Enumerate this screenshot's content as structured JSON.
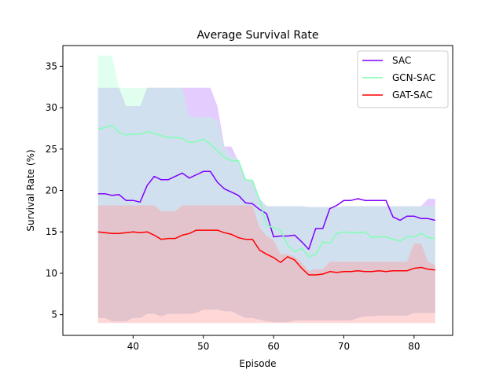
{
  "chart_data": {
    "type": "line",
    "title": "Average Survival Rate",
    "xlabel": "Episode",
    "ylabel": "Survival Rate (%)",
    "xlim": [
      30,
      85.5
    ],
    "ylim": [
      2.5,
      37.5
    ],
    "xticks": [
      40,
      50,
      60,
      70,
      80
    ],
    "yticks": [
      5,
      10,
      15,
      20,
      25,
      30,
      35
    ],
    "grid": false,
    "legend_position": "top-right",
    "x": [
      35,
      36,
      37,
      38,
      39,
      40,
      41,
      42,
      43,
      44,
      45,
      46,
      47,
      48,
      49,
      50,
      51,
      52,
      53,
      54,
      55,
      56,
      57,
      58,
      59,
      60,
      61,
      62,
      63,
      64,
      65,
      66,
      67,
      68,
      69,
      70,
      71,
      72,
      73,
      74,
      75,
      76,
      77,
      78,
      79,
      80,
      81,
      82,
      83
    ],
    "series": [
      {
        "name": "SAC",
        "color": "#7f00ff",
        "fill_color": "#bf7fff",
        "values": [
          19.6,
          19.6,
          19.4,
          19.5,
          18.8,
          18.8,
          18.6,
          20.6,
          21.7,
          21.3,
          21.3,
          21.7,
          22.1,
          21.5,
          21.9,
          22.3,
          22.3,
          21.0,
          20.2,
          19.8,
          19.4,
          18.5,
          18.4,
          17.7,
          17.2,
          14.4,
          14.5,
          14.5,
          14.6,
          13.8,
          12.9,
          15.4,
          15.4,
          17.8,
          18.2,
          18.8,
          18.8,
          19.0,
          18.8,
          18.8,
          18.8,
          18.8,
          16.8,
          16.4,
          16.9,
          16.9,
          16.6,
          16.6,
          16.4
        ],
        "lower": [
          4.6,
          4.6,
          4.2,
          4.2,
          4.2,
          4.6,
          4.6,
          5.1,
          5.1,
          4.8,
          5.1,
          5.1,
          5.1,
          5.1,
          5.2,
          5.6,
          5.6,
          5.6,
          5.4,
          5.4,
          5.0,
          4.6,
          4.6,
          4.4,
          4.2,
          4.1,
          4.1,
          4.1,
          4.3,
          4.3,
          4.3,
          4.3,
          4.3,
          4.3,
          4.3,
          4.3,
          4.3,
          4.6,
          4.8,
          4.8,
          4.9,
          4.9,
          4.9,
          4.9,
          4.9,
          5.2,
          5.2,
          5.2,
          5.2
        ],
        "upper": [
          32.4,
          32.4,
          32.4,
          32.4,
          30.2,
          30.2,
          30.2,
          32.4,
          32.4,
          32.4,
          32.4,
          32.4,
          32.4,
          32.4,
          32.4,
          32.4,
          32.4,
          30.2,
          25.3,
          25.3,
          23.5,
          21.2,
          21.2,
          19.0,
          18.1,
          18.1,
          18.1,
          18.1,
          18.1,
          18.1,
          18.0,
          18.0,
          18.0,
          18.0,
          18.0,
          18.1,
          18.1,
          18.1,
          18.1,
          18.1,
          18.1,
          18.1,
          18.1,
          18.1,
          18.1,
          18.1,
          18.1,
          19.0,
          19.0
        ]
      },
      {
        "name": "GCN-SAC",
        "color": "#80ffb4",
        "fill_color": "#b3ffd4",
        "values": [
          27.4,
          27.6,
          27.9,
          27.0,
          26.7,
          26.8,
          26.8,
          27.1,
          26.9,
          26.6,
          26.4,
          26.4,
          26.3,
          25.8,
          25.9,
          26.2,
          25.6,
          24.8,
          24.0,
          23.6,
          23.6,
          21.3,
          21.2,
          18.9,
          15.8,
          15.5,
          15.2,
          13.4,
          12.6,
          13.0,
          12.0,
          12.3,
          13.8,
          13.6,
          14.8,
          15.0,
          14.9,
          14.9,
          15.0,
          14.3,
          14.4,
          14.4,
          14.1,
          13.9,
          14.4,
          14.4,
          14.8,
          14.3,
          14.2
        ],
        "lower": [
          4.6,
          4.6,
          4.2,
          4.2,
          4.2,
          4.6,
          4.6,
          5.1,
          5.1,
          4.8,
          5.1,
          5.1,
          5.1,
          5.1,
          5.2,
          5.6,
          5.6,
          5.6,
          5.4,
          5.4,
          5.0,
          4.6,
          4.6,
          4.4,
          4.2,
          4.1,
          4.1,
          4.1,
          4.3,
          4.3,
          4.3,
          4.3,
          4.3,
          4.3,
          4.3,
          4.3,
          4.3,
          4.6,
          4.8,
          4.8,
          4.9,
          4.9,
          4.9,
          4.9,
          4.9,
          5.2,
          5.2,
          5.2,
          5.2
        ],
        "upper": [
          36.3,
          36.3,
          36.3,
          32.4,
          32.4,
          32.4,
          32.4,
          32.4,
          32.4,
          32.4,
          32.4,
          32.4,
          32.4,
          28.9,
          28.9,
          28.9,
          28.9,
          28.5,
          25.3,
          24.2,
          23.8,
          21.2,
          21.2,
          19.0,
          18.1,
          18.1,
          18.1,
          18.1,
          18.1,
          18.1,
          18.0,
          18.0,
          18.0,
          18.0,
          18.0,
          18.1,
          18.1,
          18.1,
          18.1,
          18.1,
          18.1,
          18.1,
          18.1,
          18.1,
          18.1,
          18.1,
          18.1,
          18.1,
          18.1
        ]
      },
      {
        "name": "GAT-SAC",
        "color": "#ff0000",
        "fill_color": "#ff9a9a",
        "values": [
          15.0,
          14.9,
          14.8,
          14.8,
          14.9,
          15.0,
          14.9,
          15.0,
          14.6,
          14.1,
          14.2,
          14.2,
          14.6,
          14.8,
          15.2,
          15.2,
          15.2,
          15.2,
          14.9,
          14.7,
          14.3,
          14.1,
          14.1,
          12.8,
          12.3,
          11.9,
          11.3,
          12.0,
          11.6,
          10.6,
          9.8,
          9.8,
          9.9,
          10.2,
          10.1,
          10.2,
          10.2,
          10.3,
          10.2,
          10.2,
          10.3,
          10.2,
          10.3,
          10.3,
          10.3,
          10.6,
          10.7,
          10.5,
          10.4
        ],
        "lower": [
          4.0,
          4.0,
          4.0,
          4.0,
          4.0,
          4.0,
          4.0,
          4.0,
          4.0,
          4.0,
          4.0,
          4.0,
          4.0,
          4.0,
          4.0,
          4.0,
          4.0,
          4.0,
          4.0,
          4.0,
          4.0,
          4.0,
          4.0,
          4.0,
          4.0,
          4.0,
          4.0,
          4.0,
          4.0,
          4.0,
          4.0,
          4.0,
          4.0,
          4.0,
          4.0,
          4.0,
          4.0,
          4.0,
          4.0,
          4.0,
          4.0,
          4.0,
          4.0,
          4.0,
          4.0,
          4.0,
          4.0,
          4.0,
          4.0
        ],
        "upper": [
          18.2,
          18.2,
          18.2,
          18.2,
          18.2,
          18.2,
          18.2,
          18.2,
          18.2,
          17.5,
          17.5,
          17.5,
          18.2,
          18.2,
          18.2,
          18.2,
          18.2,
          18.2,
          18.2,
          18.2,
          18.2,
          18.2,
          18.2,
          15.5,
          14.5,
          14.0,
          12.3,
          12.3,
          12.0,
          11.3,
          10.3,
          10.5,
          10.5,
          11.4,
          11.4,
          11.4,
          11.4,
          11.4,
          11.4,
          11.4,
          11.4,
          11.4,
          11.4,
          11.4,
          11.4,
          13.6,
          13.6,
          11.4,
          11.0
        ]
      }
    ]
  }
}
